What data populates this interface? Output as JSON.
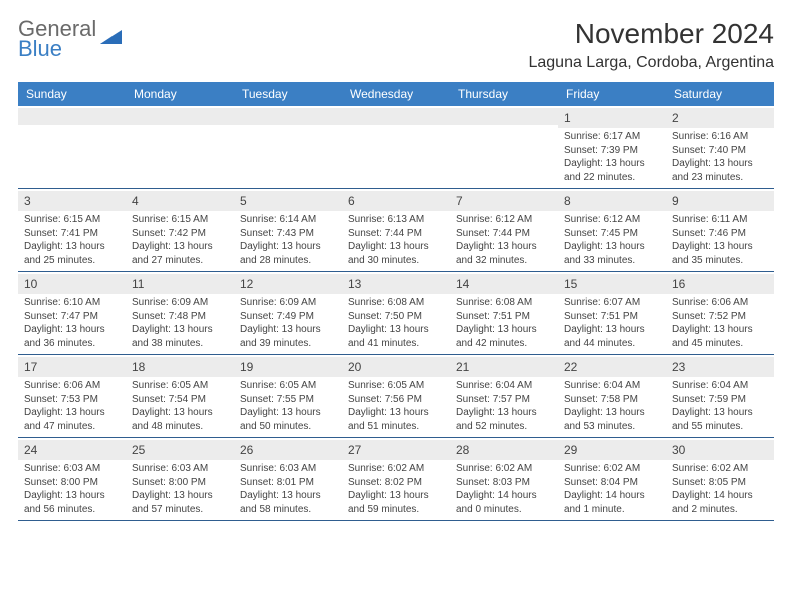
{
  "brand": {
    "line1": "General",
    "line2": "Blue",
    "logo_fill": "#2a6db8",
    "text_gray": "#6a6a6a",
    "text_blue": "#3b7fc4"
  },
  "title": "November 2024",
  "location": "Laguna Larga, Cordoba, Argentina",
  "colors": {
    "header_bg": "#3b7fc4",
    "header_text": "#ffffff",
    "daynum_bg": "#ececec",
    "cell_border": "#2f5d8f",
    "body_text": "#444444"
  },
  "day_headers": [
    "Sunday",
    "Monday",
    "Tuesday",
    "Wednesday",
    "Thursday",
    "Friday",
    "Saturday"
  ],
  "weeks": [
    [
      {
        "num": "",
        "sunrise": "",
        "sunset": "",
        "daylight": ""
      },
      {
        "num": "",
        "sunrise": "",
        "sunset": "",
        "daylight": ""
      },
      {
        "num": "",
        "sunrise": "",
        "sunset": "",
        "daylight": ""
      },
      {
        "num": "",
        "sunrise": "",
        "sunset": "",
        "daylight": ""
      },
      {
        "num": "",
        "sunrise": "",
        "sunset": "",
        "daylight": ""
      },
      {
        "num": "1",
        "sunrise": "Sunrise: 6:17 AM",
        "sunset": "Sunset: 7:39 PM",
        "daylight": "Daylight: 13 hours and 22 minutes."
      },
      {
        "num": "2",
        "sunrise": "Sunrise: 6:16 AM",
        "sunset": "Sunset: 7:40 PM",
        "daylight": "Daylight: 13 hours and 23 minutes."
      }
    ],
    [
      {
        "num": "3",
        "sunrise": "Sunrise: 6:15 AM",
        "sunset": "Sunset: 7:41 PM",
        "daylight": "Daylight: 13 hours and 25 minutes."
      },
      {
        "num": "4",
        "sunrise": "Sunrise: 6:15 AM",
        "sunset": "Sunset: 7:42 PM",
        "daylight": "Daylight: 13 hours and 27 minutes."
      },
      {
        "num": "5",
        "sunrise": "Sunrise: 6:14 AM",
        "sunset": "Sunset: 7:43 PM",
        "daylight": "Daylight: 13 hours and 28 minutes."
      },
      {
        "num": "6",
        "sunrise": "Sunrise: 6:13 AM",
        "sunset": "Sunset: 7:44 PM",
        "daylight": "Daylight: 13 hours and 30 minutes."
      },
      {
        "num": "7",
        "sunrise": "Sunrise: 6:12 AM",
        "sunset": "Sunset: 7:44 PM",
        "daylight": "Daylight: 13 hours and 32 minutes."
      },
      {
        "num": "8",
        "sunrise": "Sunrise: 6:12 AM",
        "sunset": "Sunset: 7:45 PM",
        "daylight": "Daylight: 13 hours and 33 minutes."
      },
      {
        "num": "9",
        "sunrise": "Sunrise: 6:11 AM",
        "sunset": "Sunset: 7:46 PM",
        "daylight": "Daylight: 13 hours and 35 minutes."
      }
    ],
    [
      {
        "num": "10",
        "sunrise": "Sunrise: 6:10 AM",
        "sunset": "Sunset: 7:47 PM",
        "daylight": "Daylight: 13 hours and 36 minutes."
      },
      {
        "num": "11",
        "sunrise": "Sunrise: 6:09 AM",
        "sunset": "Sunset: 7:48 PM",
        "daylight": "Daylight: 13 hours and 38 minutes."
      },
      {
        "num": "12",
        "sunrise": "Sunrise: 6:09 AM",
        "sunset": "Sunset: 7:49 PM",
        "daylight": "Daylight: 13 hours and 39 minutes."
      },
      {
        "num": "13",
        "sunrise": "Sunrise: 6:08 AM",
        "sunset": "Sunset: 7:50 PM",
        "daylight": "Daylight: 13 hours and 41 minutes."
      },
      {
        "num": "14",
        "sunrise": "Sunrise: 6:08 AM",
        "sunset": "Sunset: 7:51 PM",
        "daylight": "Daylight: 13 hours and 42 minutes."
      },
      {
        "num": "15",
        "sunrise": "Sunrise: 6:07 AM",
        "sunset": "Sunset: 7:51 PM",
        "daylight": "Daylight: 13 hours and 44 minutes."
      },
      {
        "num": "16",
        "sunrise": "Sunrise: 6:06 AM",
        "sunset": "Sunset: 7:52 PM",
        "daylight": "Daylight: 13 hours and 45 minutes."
      }
    ],
    [
      {
        "num": "17",
        "sunrise": "Sunrise: 6:06 AM",
        "sunset": "Sunset: 7:53 PM",
        "daylight": "Daylight: 13 hours and 47 minutes."
      },
      {
        "num": "18",
        "sunrise": "Sunrise: 6:05 AM",
        "sunset": "Sunset: 7:54 PM",
        "daylight": "Daylight: 13 hours and 48 minutes."
      },
      {
        "num": "19",
        "sunrise": "Sunrise: 6:05 AM",
        "sunset": "Sunset: 7:55 PM",
        "daylight": "Daylight: 13 hours and 50 minutes."
      },
      {
        "num": "20",
        "sunrise": "Sunrise: 6:05 AM",
        "sunset": "Sunset: 7:56 PM",
        "daylight": "Daylight: 13 hours and 51 minutes."
      },
      {
        "num": "21",
        "sunrise": "Sunrise: 6:04 AM",
        "sunset": "Sunset: 7:57 PM",
        "daylight": "Daylight: 13 hours and 52 minutes."
      },
      {
        "num": "22",
        "sunrise": "Sunrise: 6:04 AM",
        "sunset": "Sunset: 7:58 PM",
        "daylight": "Daylight: 13 hours and 53 minutes."
      },
      {
        "num": "23",
        "sunrise": "Sunrise: 6:04 AM",
        "sunset": "Sunset: 7:59 PM",
        "daylight": "Daylight: 13 hours and 55 minutes."
      }
    ],
    [
      {
        "num": "24",
        "sunrise": "Sunrise: 6:03 AM",
        "sunset": "Sunset: 8:00 PM",
        "daylight": "Daylight: 13 hours and 56 minutes."
      },
      {
        "num": "25",
        "sunrise": "Sunrise: 6:03 AM",
        "sunset": "Sunset: 8:00 PM",
        "daylight": "Daylight: 13 hours and 57 minutes."
      },
      {
        "num": "26",
        "sunrise": "Sunrise: 6:03 AM",
        "sunset": "Sunset: 8:01 PM",
        "daylight": "Daylight: 13 hours and 58 minutes."
      },
      {
        "num": "27",
        "sunrise": "Sunrise: 6:02 AM",
        "sunset": "Sunset: 8:02 PM",
        "daylight": "Daylight: 13 hours and 59 minutes."
      },
      {
        "num": "28",
        "sunrise": "Sunrise: 6:02 AM",
        "sunset": "Sunset: 8:03 PM",
        "daylight": "Daylight: 14 hours and 0 minutes."
      },
      {
        "num": "29",
        "sunrise": "Sunrise: 6:02 AM",
        "sunset": "Sunset: 8:04 PM",
        "daylight": "Daylight: 14 hours and 1 minute."
      },
      {
        "num": "30",
        "sunrise": "Sunrise: 6:02 AM",
        "sunset": "Sunset: 8:05 PM",
        "daylight": "Daylight: 14 hours and 2 minutes."
      }
    ]
  ]
}
